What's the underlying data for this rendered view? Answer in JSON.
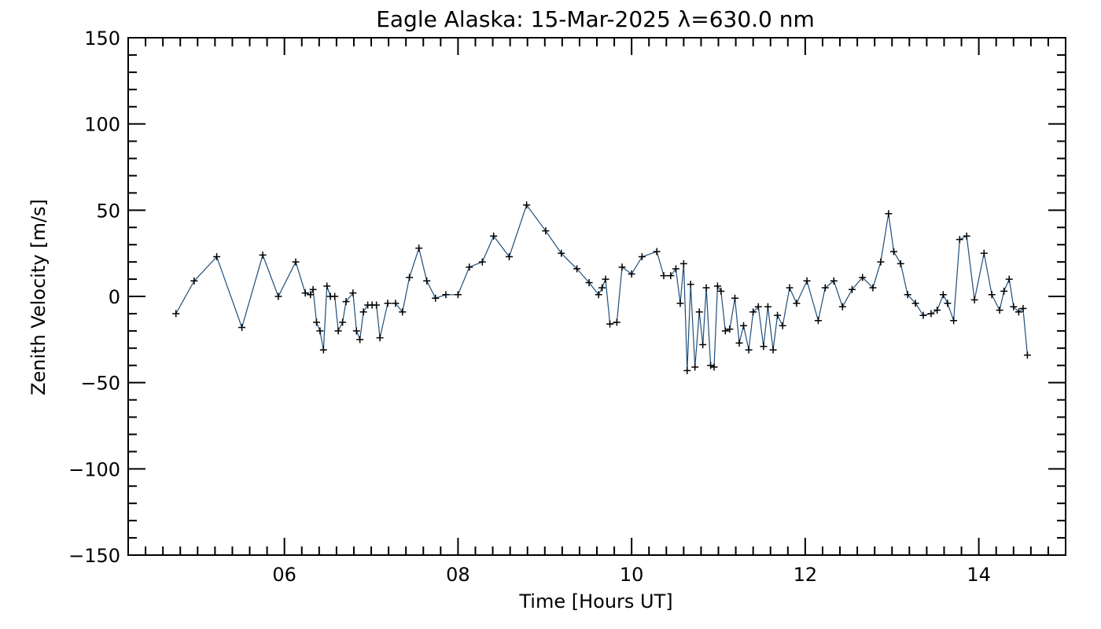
{
  "chart_data": {
    "type": "line",
    "title": "Eagle Alaska: 15-Mar-2025 λ=630.0 nm",
    "xlabel": "Time [Hours UT]",
    "ylabel": "Zenith Velocity [m/s]",
    "xlim": [
      4.2,
      15.0
    ],
    "ylim": [
      -150,
      150
    ],
    "xticks": [
      6,
      8,
      10,
      12,
      14
    ],
    "xtick_labels": [
      "06",
      "08",
      "10",
      "12",
      "14"
    ],
    "yticks": [
      -150,
      -100,
      -50,
      0,
      50,
      100,
      150
    ],
    "ytick_labels": [
      "−150",
      "−100",
      "−50",
      "0",
      "50",
      "100",
      "150"
    ],
    "line_color": "#1f4e79",
    "marker": "+",
    "grid": false,
    "series": [
      {
        "x": [
          4.75,
          4.96,
          5.22,
          5.51,
          5.75,
          5.93,
          6.13,
          6.24,
          6.3,
          6.33,
          6.37,
          6.41,
          6.45,
          6.49,
          6.53,
          6.58,
          6.62,
          6.67,
          6.71,
          6.79,
          6.83,
          6.87,
          6.91,
          6.96,
          7.01,
          7.06,
          7.1,
          7.19,
          7.28,
          7.36,
          7.44,
          7.55,
          7.64,
          7.74,
          7.86,
          8.0,
          8.13,
          8.28,
          8.41,
          8.59,
          8.79,
          9.01,
          9.19,
          9.37,
          9.51,
          9.62,
          9.66,
          9.7,
          9.75,
          9.83,
          9.89,
          10.0,
          10.12,
          10.29,
          10.37,
          10.45,
          10.51,
          10.56,
          10.6,
          10.64,
          10.68,
          10.73,
          10.78,
          10.82,
          10.86,
          10.91,
          10.95,
          10.99,
          11.03,
          11.08,
          11.13,
          11.19,
          11.24,
          11.29,
          11.35,
          11.4,
          11.46,
          11.52,
          11.57,
          11.63,
          11.68,
          11.74,
          11.82,
          11.9,
          12.02,
          12.15,
          12.23,
          12.33,
          12.43,
          12.54,
          12.66,
          12.78,
          12.87,
          12.96,
          13.02,
          13.1,
          13.18,
          13.27,
          13.36,
          13.45,
          13.52,
          13.59,
          13.64,
          13.71,
          13.78,
          13.86,
          13.95,
          14.06,
          14.15,
          14.24,
          14.29,
          14.35,
          14.4,
          14.46,
          14.51
        ],
        "y": [
          -10,
          9,
          23,
          -18,
          24,
          0,
          20,
          2,
          1,
          4,
          -15,
          -20,
          -31,
          6,
          0,
          0,
          -20,
          -15,
          -3,
          2,
          -20,
          -25,
          -9,
          -5,
          -5,
          -5,
          -24,
          -4,
          -4,
          -9,
          11,
          28,
          9,
          -1,
          1,
          1,
          17,
          20,
          35,
          23,
          53,
          38,
          25,
          16,
          8,
          1,
          5,
          10,
          -16,
          -15,
          17,
          13,
          23,
          26,
          12,
          12,
          16,
          -4,
          19,
          -43,
          7,
          -41,
          -9,
          -28,
          5,
          -40,
          -41,
          6,
          3,
          -20,
          -19,
          -1,
          -27,
          -17,
          -31,
          -9,
          -6,
          -29,
          -6,
          -31,
          -11,
          -17,
          5,
          -4,
          9,
          -14,
          5,
          9,
          -6,
          4,
          11,
          5,
          20,
          48,
          26,
          19,
          1,
          -4,
          -11,
          -10,
          -8,
          1,
          -4,
          -14,
          33,
          35,
          -2,
          25,
          1,
          -8,
          3,
          10,
          -6,
          -9,
          -7
        ]
      },
      {
        "x": [
          14.56
        ],
        "y": [
          -34
        ]
      }
    ]
  }
}
